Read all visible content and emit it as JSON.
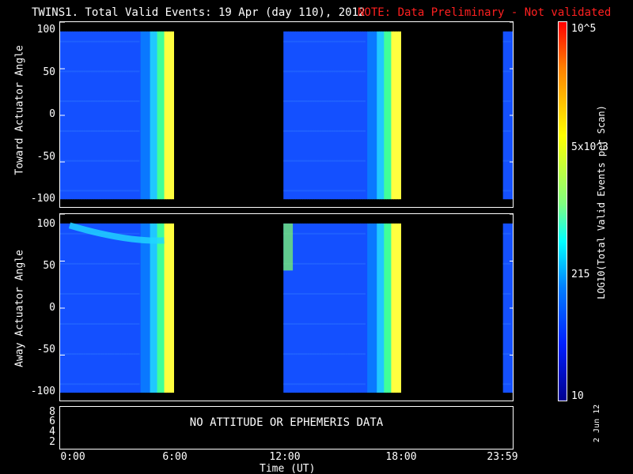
{
  "header": {
    "title": "TWINS1. Total Valid Events: 19 Apr (day 110), 2012",
    "note": "NOTE: Data Preliminary - Not validated"
  },
  "panels": {
    "top_ylabel": "Toward Actuator Angle",
    "mid_ylabel": "Away Actuator Angle",
    "angle_ticks": [
      "100",
      "50",
      "0",
      "-50",
      "-100"
    ],
    "bottom_ticks": [
      "8",
      "6",
      "4",
      "2"
    ],
    "no_data_text": "NO ATTITUDE OR EPHEMERIS DATA"
  },
  "xaxis": {
    "label": "Time (UT)",
    "ticks": [
      "0:00",
      "6:00",
      "12:00",
      "18:00",
      "23:59"
    ]
  },
  "colorbar": {
    "title": "LOG10(Total Valid Events per Scan)",
    "labels": [
      "10^5",
      "5x10^3",
      "215",
      "10"
    ],
    "top_color": "#ff0000",
    "bottom_color": "#00008f"
  },
  "stamp": "2 Jun 12",
  "chart_data": {
    "type": "heatmap",
    "x_unit": "hours UT",
    "xlim": [
      0,
      24
    ],
    "ylim": [
      -100,
      100
    ],
    "color_scale": "log",
    "color_range": [
      10,
      100000
    ],
    "data_intervals_hours": [
      [
        0,
        6
      ],
      [
        11.8,
        18.0
      ],
      [
        23.4,
        24
      ]
    ],
    "angle_range": [
      -90,
      90
    ]
  }
}
